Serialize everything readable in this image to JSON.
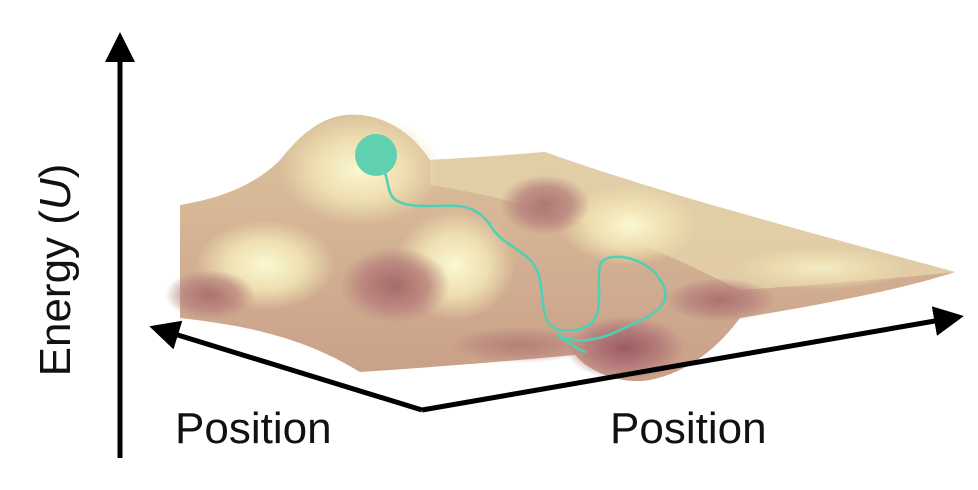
{
  "labels": {
    "energy_prefix": "Energy (",
    "energy_symbol": "U",
    "energy_suffix": ")",
    "position_left": "Position",
    "position_right": "Position"
  },
  "colors": {
    "axis": "#000000",
    "surface_peak": "#f3efc0",
    "surface_mid": "#d7b893",
    "surface_valley": "#a86a6e",
    "particle": "#5fd0b0",
    "trajectory": "#4fd0b4"
  },
  "icons": {
    "particle": "ball-icon",
    "energy_arrow": "arrow-up-icon",
    "position_left_arrow": "arrow-left-icon",
    "position_right_arrow": "arrow-right-icon"
  }
}
